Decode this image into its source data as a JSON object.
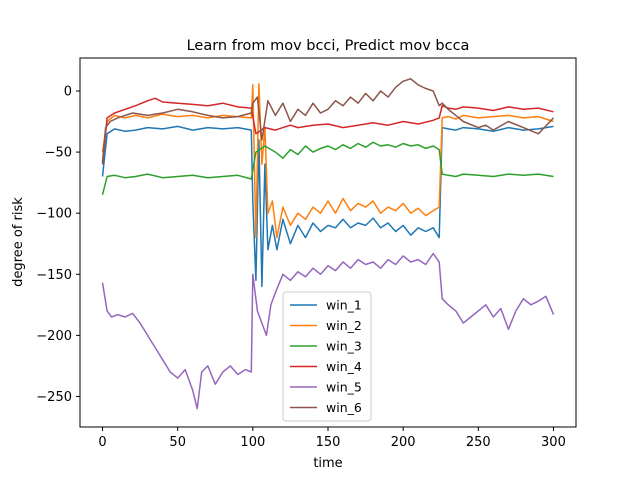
{
  "chart_data": {
    "type": "line",
    "title": "Learn from mov bcci, Predict mov bcca",
    "xlabel": "time",
    "ylabel": "degree of risk",
    "xlim": [
      -15,
      315
    ],
    "ylim": [
      -275,
      27
    ],
    "xticks": [
      0,
      50,
      100,
      150,
      200,
      250,
      300
    ],
    "yticks": [
      0,
      -50,
      -100,
      -150,
      -200,
      -250
    ],
    "grid": false,
    "legend_position": "lower-center",
    "series": [
      {
        "name": "win_1",
        "color": "#1f77b4",
        "x": [
          0,
          3,
          8,
          15,
          22,
          30,
          40,
          50,
          60,
          70,
          80,
          90,
          99,
          100,
          102,
          104,
          106,
          108,
          110,
          113,
          116,
          120,
          125,
          130,
          135,
          140,
          145,
          150,
          155,
          160,
          165,
          170,
          175,
          180,
          185,
          190,
          195,
          200,
          205,
          210,
          215,
          220,
          224,
          226,
          230,
          235,
          240,
          250,
          260,
          270,
          280,
          290,
          300
        ],
        "values": [
          -70,
          -35,
          -31,
          -33,
          -32,
          -30,
          -31,
          -29,
          -32,
          -30,
          -31,
          -30,
          -32,
          -90,
          -155,
          -40,
          -160,
          -60,
          -130,
          -110,
          -130,
          -105,
          -125,
          -110,
          -120,
          -108,
          -115,
          -110,
          -112,
          -105,
          -112,
          -108,
          -110,
          -104,
          -112,
          -108,
          -115,
          -110,
          -118,
          -112,
          -115,
          -112,
          -120,
          -30,
          -31,
          -32,
          -30,
          -31,
          -33,
          -30,
          -32,
          -31,
          -29
        ]
      },
      {
        "name": "win_2",
        "color": "#ff7f0e",
        "x": [
          0,
          3,
          8,
          15,
          22,
          30,
          40,
          50,
          60,
          70,
          80,
          90,
          99,
          100,
          102,
          104,
          106,
          108,
          110,
          113,
          116,
          120,
          125,
          130,
          135,
          140,
          145,
          150,
          155,
          160,
          165,
          170,
          175,
          180,
          185,
          190,
          195,
          200,
          205,
          210,
          215,
          220,
          224,
          226,
          230,
          235,
          240,
          250,
          260,
          270,
          280,
          290,
          300
        ],
        "values": [
          -50,
          -25,
          -20,
          -22,
          -20,
          -22,
          -19,
          -21,
          -20,
          -22,
          -20,
          -21,
          -22,
          5,
          -120,
          6,
          -60,
          -30,
          -100,
          -90,
          -120,
          -95,
          -110,
          -100,
          -105,
          -95,
          -100,
          -90,
          -100,
          -88,
          -98,
          -92,
          -95,
          -90,
          -100,
          -95,
          -98,
          -92,
          -100,
          -96,
          -102,
          -98,
          -95,
          -22,
          -21,
          -23,
          -20,
          -22,
          -21,
          -20,
          -22,
          -21,
          -25
        ]
      },
      {
        "name": "win_3",
        "color": "#2ca02c",
        "x": [
          0,
          3,
          8,
          15,
          22,
          30,
          40,
          50,
          60,
          70,
          80,
          90,
          99,
          102,
          108,
          115,
          120,
          125,
          130,
          135,
          140,
          145,
          150,
          155,
          160,
          165,
          170,
          175,
          180,
          185,
          190,
          195,
          200,
          205,
          210,
          215,
          220,
          224,
          226,
          230,
          235,
          240,
          250,
          260,
          270,
          280,
          290,
          300
        ],
        "values": [
          -85,
          -70,
          -69,
          -71,
          -70,
          -68,
          -71,
          -70,
          -69,
          -71,
          -70,
          -69,
          -72,
          -50,
          -45,
          -50,
          -55,
          -48,
          -52,
          -45,
          -50,
          -47,
          -45,
          -48,
          -44,
          -47,
          -43,
          -46,
          -42,
          -45,
          -44,
          -46,
          -43,
          -45,
          -44,
          -47,
          -45,
          -48,
          -68,
          -69,
          -70,
          -68,
          -69,
          -70,
          -68,
          -69,
          -68,
          -70
        ]
      },
      {
        "name": "win_4",
        "color": "#d62728",
        "x": [
          0,
          3,
          8,
          15,
          22,
          30,
          35,
          40,
          50,
          60,
          70,
          80,
          90,
          99,
          102,
          108,
          115,
          120,
          125,
          130,
          140,
          150,
          160,
          170,
          180,
          190,
          200,
          210,
          220,
          224,
          226,
          230,
          235,
          240,
          250,
          260,
          270,
          280,
          290,
          300
        ],
        "values": [
          -60,
          -22,
          -18,
          -15,
          -12,
          -8,
          -6,
          -9,
          -10,
          -11,
          -12,
          -10,
          -13,
          -14,
          -35,
          -30,
          -32,
          -30,
          -28,
          -30,
          -28,
          -27,
          -30,
          -28,
          -26,
          -28,
          -25,
          -27,
          -24,
          -22,
          -12,
          -14,
          -15,
          -13,
          -14,
          -16,
          -13,
          -15,
          -14,
          -17
        ]
      },
      {
        "name": "win_5",
        "color": "#9467bd",
        "x": [
          0,
          3,
          6,
          10,
          15,
          20,
          25,
          30,
          35,
          40,
          45,
          50,
          55,
          60,
          63,
          66,
          70,
          75,
          80,
          85,
          90,
          95,
          99,
          100,
          103,
          106,
          109,
          112,
          115,
          120,
          125,
          130,
          135,
          140,
          145,
          150,
          155,
          160,
          165,
          170,
          175,
          180,
          185,
          190,
          195,
          200,
          205,
          210,
          215,
          220,
          224,
          226,
          230,
          235,
          240,
          245,
          250,
          255,
          260,
          265,
          270,
          275,
          280,
          285,
          290,
          295,
          300
        ],
        "values": [
          -157,
          -180,
          -185,
          -183,
          -185,
          -182,
          -190,
          -200,
          -210,
          -220,
          -230,
          -235,
          -228,
          -245,
          -260,
          -230,
          -225,
          -240,
          -230,
          -225,
          -232,
          -228,
          -230,
          -150,
          -180,
          -190,
          -200,
          -175,
          -165,
          -150,
          -155,
          -148,
          -152,
          -145,
          -150,
          -143,
          -147,
          -140,
          -145,
          -138,
          -142,
          -140,
          -145,
          -138,
          -142,
          -135,
          -140,
          -138,
          -142,
          -133,
          -140,
          -170,
          -175,
          -180,
          -190,
          -185,
          -180,
          -175,
          -185,
          -178,
          -195,
          -180,
          -170,
          -175,
          -172,
          -168,
          -183
        ]
      },
      {
        "name": "win_6",
        "color": "#8c564b",
        "x": [
          0,
          2,
          5,
          10,
          15,
          20,
          30,
          40,
          50,
          60,
          70,
          80,
          90,
          99,
          100,
          103,
          106,
          110,
          115,
          120,
          125,
          130,
          135,
          140,
          145,
          150,
          155,
          160,
          165,
          170,
          175,
          180,
          185,
          190,
          195,
          200,
          205,
          210,
          215,
          220,
          224,
          226,
          230,
          235,
          240,
          250,
          255,
          260,
          270,
          280,
          290,
          300
        ],
        "values": [
          -58,
          -30,
          -25,
          -22,
          -20,
          -18,
          -20,
          -18,
          -15,
          -17,
          -20,
          -22,
          -21,
          -18,
          -10,
          -5,
          -40,
          -8,
          -20,
          -10,
          -25,
          -15,
          -20,
          -10,
          -18,
          -15,
          -8,
          -12,
          -5,
          -10,
          -2,
          -8,
          0,
          -5,
          3,
          8,
          10,
          5,
          2,
          0,
          -12,
          -10,
          -15,
          -20,
          -25,
          -30,
          -28,
          -32,
          -25,
          -30,
          -35,
          -22
        ]
      }
    ]
  }
}
